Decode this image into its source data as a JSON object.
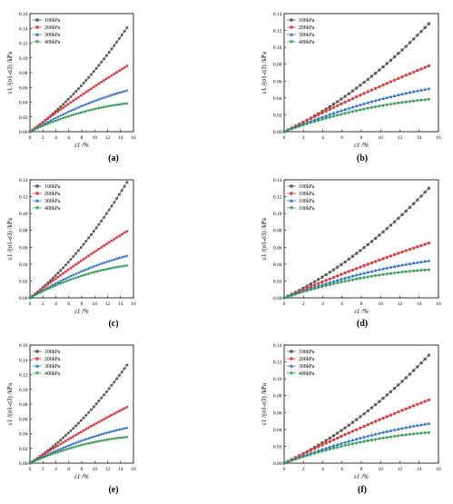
{
  "panels": [
    {
      "caption": "(a)",
      "legend": [
        "100kPa",
        "200kPa",
        "300kPa",
        "400kPa"
      ]
    },
    {
      "caption": "(b)",
      "legend": [
        "100kPa",
        "200kPa",
        "300kPa",
        "400kPa"
      ]
    },
    {
      "caption": "(c)",
      "legend": [
        "100kPa",
        "200kPa",
        "300kPa",
        "400kPa"
      ]
    },
    {
      "caption": "(d)",
      "legend": [
        "100kPa",
        "100kPa",
        "100kPa",
        "100kPa"
      ]
    },
    {
      "caption": "(e)",
      "legend": [
        "100kPa",
        "200kPa",
        "300kPa",
        "400kPa"
      ]
    },
    {
      "caption": "(f)",
      "legend": [
        "100kPa",
        "200kPa",
        "300kPa",
        "400kPa"
      ]
    }
  ],
  "colors": {
    "s100": "#555555",
    "s200": "#e8383a",
    "s300": "#2a6fcf",
    "s400": "#2a9d4a"
  },
  "chart_data": [
    {
      "type": "line",
      "panel": "(a)",
      "xlabel": "ε1 /%",
      "ylabel": "ε1 /(σ1-σ3) /kPa",
      "xlim": [
        0,
        16
      ],
      "ylim": [
        0,
        0.16
      ],
      "xticks": [
        0,
        2,
        4,
        6,
        8,
        10,
        12,
        14,
        16
      ],
      "yticks": [
        0.0,
        0.02,
        0.04,
        0.06,
        0.08,
        0.1,
        0.12,
        0.14,
        0.16
      ],
      "legend_position": "top-left",
      "series": [
        {
          "name": "100kPa",
          "marker": "square",
          "end_y": 0.141
        },
        {
          "name": "200kPa",
          "marker": "circle",
          "end_y": 0.089
        },
        {
          "name": "300kPa",
          "marker": "triangle-up",
          "end_y": 0.056
        },
        {
          "name": "400kPa",
          "marker": "triangle-down",
          "end_y": 0.038
        }
      ]
    },
    {
      "type": "line",
      "panel": "(b)",
      "xlabel": "ε1 /%",
      "ylabel": "ε1 /(σ1-σ3) /kPa",
      "xlim": [
        0,
        16
      ],
      "ylim": [
        0,
        0.14
      ],
      "xticks": [
        0,
        2,
        4,
        6,
        8,
        10,
        12,
        14,
        16
      ],
      "yticks": [
        0.0,
        0.02,
        0.04,
        0.06,
        0.08,
        0.1,
        0.12,
        0.14
      ],
      "legend_position": "top-left",
      "series": [
        {
          "name": "100kPa",
          "marker": "square",
          "end_y": 0.128
        },
        {
          "name": "200kPa",
          "marker": "circle",
          "end_y": 0.078
        },
        {
          "name": "300kPa",
          "marker": "triangle-up",
          "end_y": 0.051
        },
        {
          "name": "400kPa",
          "marker": "triangle-down",
          "end_y": 0.038
        }
      ]
    },
    {
      "type": "line",
      "panel": "(c)",
      "xlabel": "ε1 /%",
      "ylabel": "ε1 /(σ1-σ3) /kPa",
      "xlim": [
        0,
        16
      ],
      "ylim": [
        0,
        0.14
      ],
      "xticks": [
        0,
        2,
        4,
        6,
        8,
        10,
        12,
        14,
        16
      ],
      "yticks": [
        0.0,
        0.02,
        0.04,
        0.06,
        0.08,
        0.1,
        0.12,
        0.14
      ],
      "legend_position": "top-left",
      "series": [
        {
          "name": "100kPa",
          "marker": "square",
          "end_y": 0.137
        },
        {
          "name": "200kPa",
          "marker": "circle",
          "end_y": 0.079
        },
        {
          "name": "300kPa",
          "marker": "triangle-up",
          "end_y": 0.05
        },
        {
          "name": "400kPa",
          "marker": "triangle-down",
          "end_y": 0.038
        }
      ]
    },
    {
      "type": "line",
      "panel": "(d)",
      "xlabel": "ε1 /%",
      "ylabel": "ε1 /(σ1-σ3) /kPa",
      "xlim": [
        0,
        16
      ],
      "ylim": [
        0,
        0.14
      ],
      "xticks": [
        0,
        2,
        4,
        6,
        8,
        10,
        12,
        14,
        16
      ],
      "yticks": [
        0.0,
        0.02,
        0.04,
        0.06,
        0.08,
        0.1,
        0.12,
        0.14
      ],
      "legend_position": "top-left",
      "series": [
        {
          "name": "100kPa",
          "marker": "square",
          "end_y": 0.13
        },
        {
          "name": "100kPa",
          "marker": "circle",
          "end_y": 0.065
        },
        {
          "name": "100kPa",
          "marker": "triangle-up",
          "end_y": 0.044
        },
        {
          "name": "100kPa",
          "marker": "triangle-down",
          "end_y": 0.033
        }
      ]
    },
    {
      "type": "line",
      "panel": "(e)",
      "xlabel": "ε1 /%",
      "ylabel": "ε1 /(σ1-σ3) /kPa",
      "xlim": [
        0,
        16
      ],
      "ylim": [
        0,
        0.16
      ],
      "xticks": [
        0,
        2,
        4,
        6,
        8,
        10,
        12,
        14,
        16
      ],
      "yticks": [
        0.0,
        0.02,
        0.04,
        0.06,
        0.08,
        0.1,
        0.12,
        0.14,
        0.16
      ],
      "legend_position": "top-left",
      "series": [
        {
          "name": "100kPa",
          "marker": "square",
          "end_y": 0.133
        },
        {
          "name": "200kPa",
          "marker": "circle",
          "end_y": 0.076
        },
        {
          "name": "300kPa",
          "marker": "triangle-up",
          "end_y": 0.048
        },
        {
          "name": "400kPa",
          "marker": "triangle-down",
          "end_y": 0.035
        }
      ]
    },
    {
      "type": "line",
      "panel": "(f)",
      "xlabel": "ε1 /%",
      "ylabel": "ε1 /(σ1-σ3) /kPa",
      "xlim": [
        0,
        16
      ],
      "ylim": [
        0,
        0.14
      ],
      "xticks": [
        0,
        2,
        4,
        6,
        8,
        10,
        12,
        14,
        16
      ],
      "yticks": [
        0.0,
        0.02,
        0.04,
        0.06,
        0.08,
        0.1,
        0.12,
        0.14
      ],
      "legend_position": "top-left",
      "series": [
        {
          "name": "100kPa",
          "marker": "square",
          "end_y": 0.128
        },
        {
          "name": "200kPa",
          "marker": "circle",
          "end_y": 0.075
        },
        {
          "name": "300kPa",
          "marker": "triangle-up",
          "end_y": 0.047
        },
        {
          "name": "400kPa",
          "marker": "triangle-down",
          "end_y": 0.036
        }
      ]
    }
  ]
}
